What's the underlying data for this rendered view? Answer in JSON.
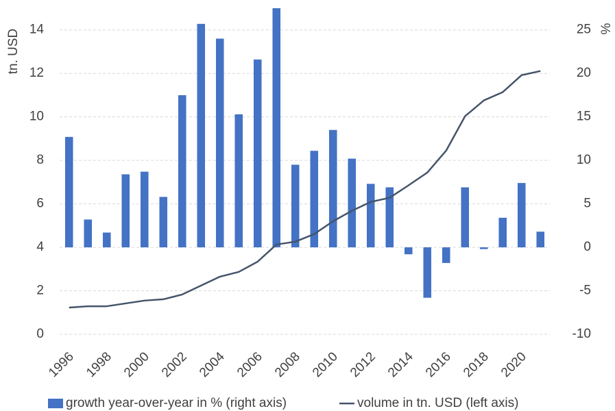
{
  "chart_data": {
    "type": "bar-line",
    "y_label": "tn. USD",
    "y2_label": "%",
    "categories": [
      "1996",
      null,
      "1998",
      null,
      "2000",
      null,
      "2002",
      null,
      "2004",
      null,
      "2006",
      null,
      "2008",
      null,
      "2010",
      null,
      "2012",
      null,
      "2014",
      null,
      "2016",
      null,
      "2018",
      null,
      "2020",
      null
    ],
    "series": [
      {
        "name": "growth year-over-year in % (right axis)",
        "kind": "bar",
        "axis": "y2",
        "color": "#4472c4",
        "values": [
          12.7,
          3.2,
          1.7,
          8.4,
          8.7,
          5.8,
          17.5,
          25.7,
          24.0,
          15.3,
          21.6,
          27.5,
          9.5,
          11.1,
          13.5,
          10.2,
          7.3,
          6.9,
          -0.8,
          -5.8,
          -1.8,
          6.9,
          -0.2,
          3.4,
          7.4,
          1.8
        ]
      },
      {
        "name": "volume in tn. USD (left axis)",
        "kind": "line",
        "axis": "y",
        "color": "#44546a",
        "values": [
          1.23,
          1.29,
          1.29,
          1.42,
          1.55,
          1.61,
          1.83,
          2.24,
          2.65,
          2.87,
          3.34,
          4.13,
          4.26,
          4.61,
          5.2,
          5.68,
          6.09,
          6.28,
          6.85,
          7.44,
          8.45,
          10.03,
          10.76,
          11.14,
          11.92,
          12.11
        ]
      }
    ],
    "ylim": [
      0,
      15
    ],
    "yticks": [
      0,
      2,
      4,
      6,
      8,
      10,
      12,
      14
    ],
    "y2lim": [
      -10,
      27.5
    ],
    "y2ticks": [
      -10,
      -5,
      0,
      5,
      10,
      15,
      20,
      25
    ],
    "grid": true,
    "legend": "bottom"
  }
}
